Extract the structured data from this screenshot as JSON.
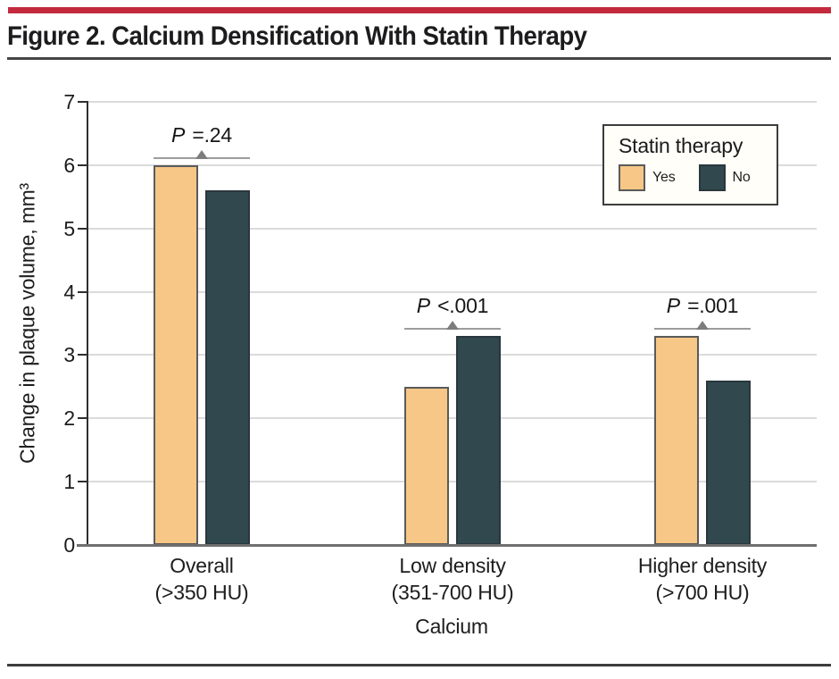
{
  "header": {
    "title": "Figure 2. Calcium Densification With Statin Therapy"
  },
  "accent_color": "#C42A3E",
  "chart_data": {
    "type": "bar",
    "title": "Figure 2. Calcium Densification With Statin Therapy",
    "categories": [
      {
        "line1": "Overall",
        "line2": "(>350 HU)"
      },
      {
        "line1": "Low density",
        "line2": "(351-700 HU)"
      },
      {
        "line1": "Higher density",
        "line2": "(>700 HU)"
      }
    ],
    "series": [
      {
        "name": "Yes",
        "color": "#F6C787",
        "border_color": "#5A5A5A",
        "values": [
          6.0,
          2.5,
          3.3
        ]
      },
      {
        "name": "No",
        "color": "#31484F",
        "border_color": "#2A373C",
        "values": [
          5.6,
          3.3,
          2.6
        ]
      }
    ],
    "ylabel": "Change in plaque volume, mm³",
    "xlabel": "Calcium",
    "ylim": [
      0,
      7
    ],
    "yticks": [
      0,
      1,
      2,
      3,
      4,
      5,
      6,
      7
    ],
    "grid": true,
    "legend": {
      "title": "Statin therapy",
      "position": "top-right"
    },
    "annotations": [
      {
        "group": 0,
        "text": "P =.24"
      },
      {
        "group": 1,
        "text": "P <.001"
      },
      {
        "group": 2,
        "text": "P =.001"
      }
    ],
    "grid_color": "#DBDBDB",
    "annotation_line_color": "#9C9C9C",
    "annotation_marker_color": "#7D7D7D"
  }
}
